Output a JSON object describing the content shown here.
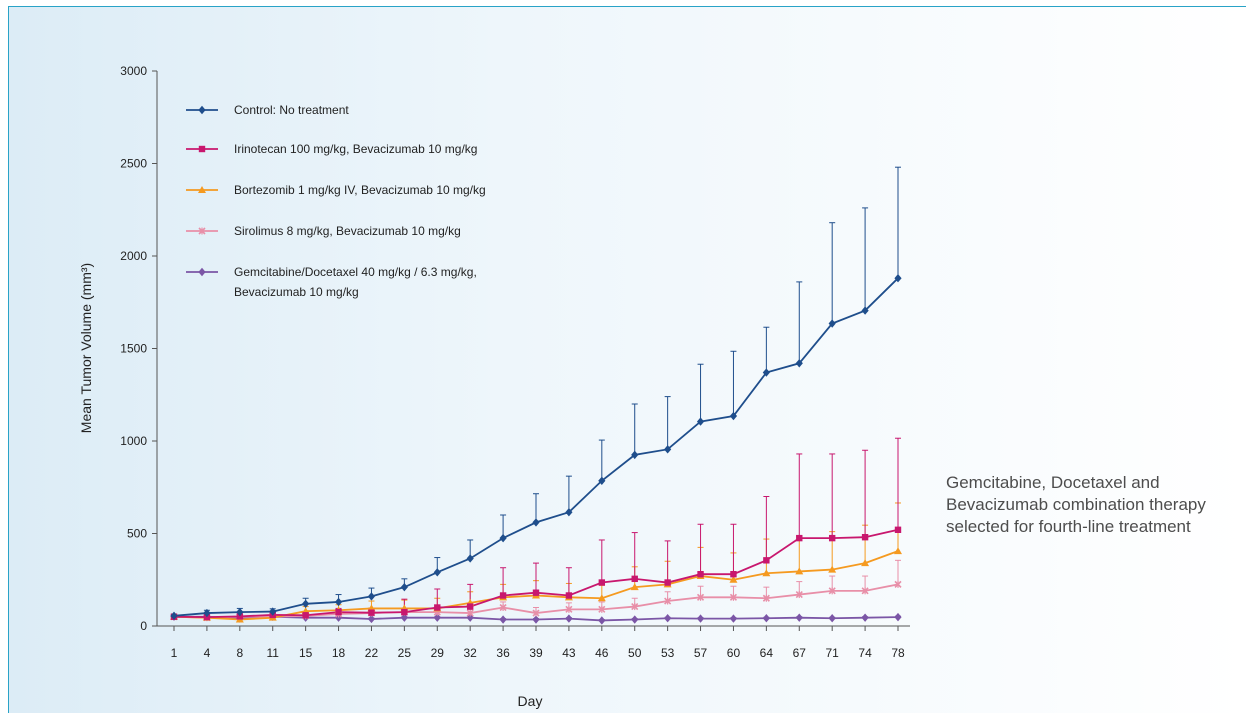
{
  "annotation": "Gemcitabine, Docetaxel and Bevacizumab combination therapy selected for fourth-line treatment",
  "chart_data": {
    "type": "line",
    "title": "",
    "xlabel": "Day",
    "ylabel": "Mean Tumor Volume (mm³)",
    "ylim": [
      0,
      3000
    ],
    "yticks": [
      0,
      500,
      1000,
      1500,
      2000,
      2500,
      3000
    ],
    "x": [
      "1",
      "4",
      "8",
      "11",
      "15",
      "18",
      "22",
      "25",
      "29",
      "32",
      "36",
      "39",
      "43",
      "46",
      "50",
      "53",
      "57",
      "60",
      "64",
      "67",
      "71",
      "74",
      "78"
    ],
    "legend_position": "top-left",
    "series": [
      {
        "name": "Control: No treatment",
        "color": "#1f4e8c",
        "marker": "diamond",
        "values": [
          55,
          70,
          75,
          78,
          120,
          130,
          160,
          210,
          290,
          365,
          475,
          560,
          615,
          785,
          925,
          955,
          1105,
          1135,
          1370,
          1420,
          1635,
          1705,
          1880
        ],
        "error": [
          10,
          15,
          20,
          15,
          30,
          40,
          45,
          45,
          80,
          100,
          125,
          155,
          195,
          220,
          275,
          285,
          310,
          350,
          245,
          440,
          545,
          555,
          600
        ]
      },
      {
        "name": "Irinotecan 100 mg/kg, Bevacizumab 10 mg/kg",
        "color": "#c8176e",
        "marker": "square",
        "values": [
          50,
          48,
          52,
          60,
          58,
          75,
          72,
          75,
          100,
          105,
          165,
          180,
          165,
          235,
          255,
          235,
          280,
          280,
          355,
          475,
          475,
          480,
          520
        ],
        "error": [
          10,
          10,
          10,
          10,
          20,
          20,
          25,
          70,
          100,
          120,
          150,
          160,
          150,
          230,
          250,
          225,
          270,
          270,
          345,
          455,
          455,
          470,
          495
        ]
      },
      {
        "name": "Bortezomib 1 mg/kg IV, Bevacizumab 10 mg/kg",
        "color": "#f59a20",
        "marker": "triangle",
        "values": [
          50,
          45,
          35,
          45,
          80,
          85,
          95,
          95,
          95,
          125,
          155,
          165,
          155,
          150,
          210,
          225,
          270,
          250,
          285,
          295,
          305,
          340,
          405
        ],
        "error": [
          10,
          10,
          10,
          10,
          25,
          30,
          40,
          45,
          55,
          60,
          70,
          80,
          75,
          70,
          110,
          125,
          155,
          145,
          185,
          190,
          205,
          205,
          260
        ]
      },
      {
        "name": "Sirolimus 8 mg/kg, Bevacizumab 10 mg/kg",
        "color": "#e88fa8",
        "marker": "x",
        "values": [
          50,
          45,
          50,
          50,
          55,
          65,
          70,
          75,
          75,
          70,
          100,
          70,
          90,
          90,
          105,
          135,
          155,
          155,
          150,
          170,
          190,
          190,
          225
        ],
        "error": [
          10,
          10,
          10,
          10,
          10,
          15,
          20,
          15,
          20,
          20,
          30,
          30,
          35,
          40,
          45,
          50,
          60,
          60,
          60,
          70,
          80,
          80,
          130
        ]
      },
      {
        "name": "Gemcitabine/Docetaxel 40 mg/kg / 6.3 mg/kg, Bevacizumab 10 mg/kg",
        "name_lines": [
          "Gemcitabine/Docetaxel 40 mg/kg / 6.3 mg/kg,",
          "Bevacizumab 10 mg/kg"
        ],
        "color": "#7b56a6",
        "marker": "diamond",
        "values": [
          50,
          50,
          40,
          50,
          45,
          45,
          38,
          45,
          45,
          45,
          35,
          35,
          40,
          30,
          35,
          42,
          40,
          40,
          42,
          45,
          42,
          45,
          48
        ],
        "error": [
          5,
          5,
          5,
          5,
          5,
          5,
          5,
          5,
          5,
          5,
          5,
          5,
          5,
          5,
          5,
          5,
          5,
          5,
          5,
          5,
          5,
          5,
          5
        ]
      }
    ]
  }
}
